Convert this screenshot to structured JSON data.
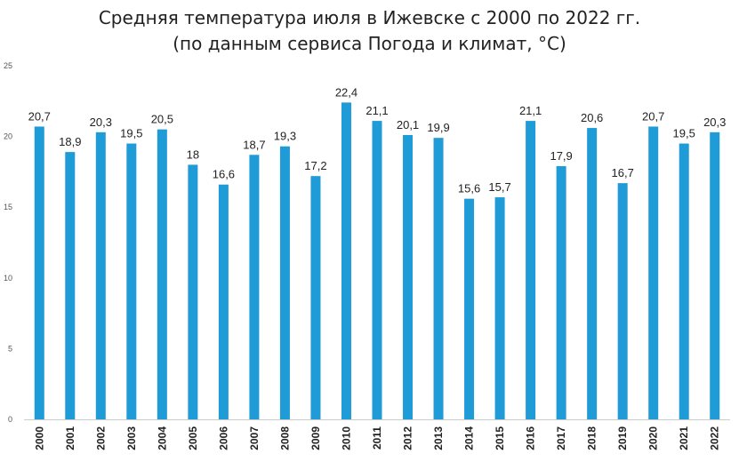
{
  "chart_data": {
    "type": "bar",
    "title_lines": [
      "Средняя температура июля в Ижевске с 2000 по 2022 гг.",
      "(по данным сервиса Погода и климат, °C)"
    ],
    "categories": [
      "2000",
      "2001",
      "2002",
      "2003",
      "2004",
      "2005",
      "2006",
      "2007",
      "2008",
      "2009",
      "2010",
      "2011",
      "2012",
      "2013",
      "2014",
      "2015",
      "2016",
      "2017",
      "2018",
      "2019",
      "2020",
      "2021",
      "2022"
    ],
    "values": [
      20.7,
      18.9,
      20.3,
      19.5,
      20.5,
      18,
      16.6,
      18.7,
      19.3,
      17.2,
      22.4,
      21.1,
      20.1,
      19.9,
      15.6,
      15.7,
      21.1,
      17.9,
      20.6,
      16.7,
      20.7,
      19.5,
      20.3
    ],
    "data_labels": [
      "20,7",
      "18,9",
      "20,3",
      "19,5",
      "20,5",
      "18",
      "16,6",
      "18,7",
      "19,3",
      "17,2",
      "22,4",
      "21,1",
      "20,1",
      "19,9",
      "15,6",
      "15,7",
      "21,1",
      "17,9",
      "20,6",
      "16,7",
      "20,7",
      "19,5",
      "20,3"
    ],
    "y_ticks": [
      0,
      5,
      10,
      15,
      20,
      25
    ],
    "ylim": [
      0,
      25
    ],
    "grid": false,
    "legend": "none",
    "bar_color": "#1f9bd8",
    "axis_color": "#cccccc"
  }
}
